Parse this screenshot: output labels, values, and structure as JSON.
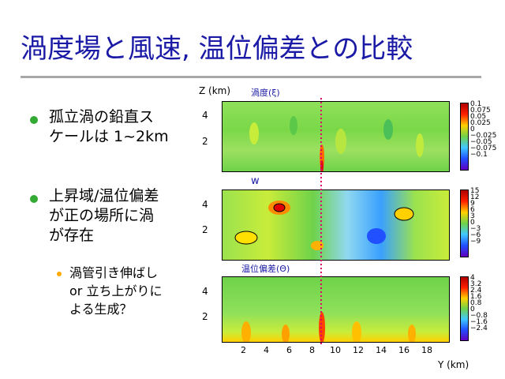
{
  "slide": {
    "title": "渦度場と風速, 温位偏差との比較"
  },
  "bullets": [
    {
      "lines": [
        "孤立渦の鉛直ス",
        "ケールは 1~2km"
      ]
    },
    {
      "lines": [
        "上昇域/温位偏差",
        "が正の場所に渦",
        "が存在"
      ]
    }
  ],
  "sub_bullet": {
    "lines": [
      "渦管引き伸ばし",
      "or 立ち上がりに",
      "よる生成？"
    ]
  },
  "figure": {
    "z_axis_label": "Z (km)",
    "y_axis_label": "Y (km)",
    "x_ticks": [
      "2",
      "4",
      "6",
      "8",
      "10",
      "12",
      "14",
      "16",
      "18"
    ],
    "panels": [
      {
        "label": "渦度(ξ)",
        "z_ticks": [
          "4",
          "2"
        ],
        "colorbar": [
          "0.1",
          "0.075",
          "0.05",
          "0.025",
          "0",
          "−0.025",
          "−0.05",
          "−0.075",
          "−0.1"
        ]
      },
      {
        "label": "w",
        "z_ticks": [
          "4",
          "2"
        ],
        "colorbar": [
          "15",
          "12",
          "9",
          "6",
          "3",
          "0",
          "−3",
          "−6",
          "−9"
        ]
      },
      {
        "label": "温位偏差(Θ)",
        "z_ticks": [
          "4",
          "2"
        ],
        "colorbar": [
          "4",
          "3.2",
          "2.4",
          "1.6",
          "0.8",
          "0",
          "−0.8",
          "−1.6",
          "−2.4"
        ]
      }
    ]
  },
  "colors": {
    "title": "#1a1aa6",
    "bullet": "#33aa33",
    "sub_bullet": "#ffaa00",
    "marker_line": "#e0006a"
  }
}
